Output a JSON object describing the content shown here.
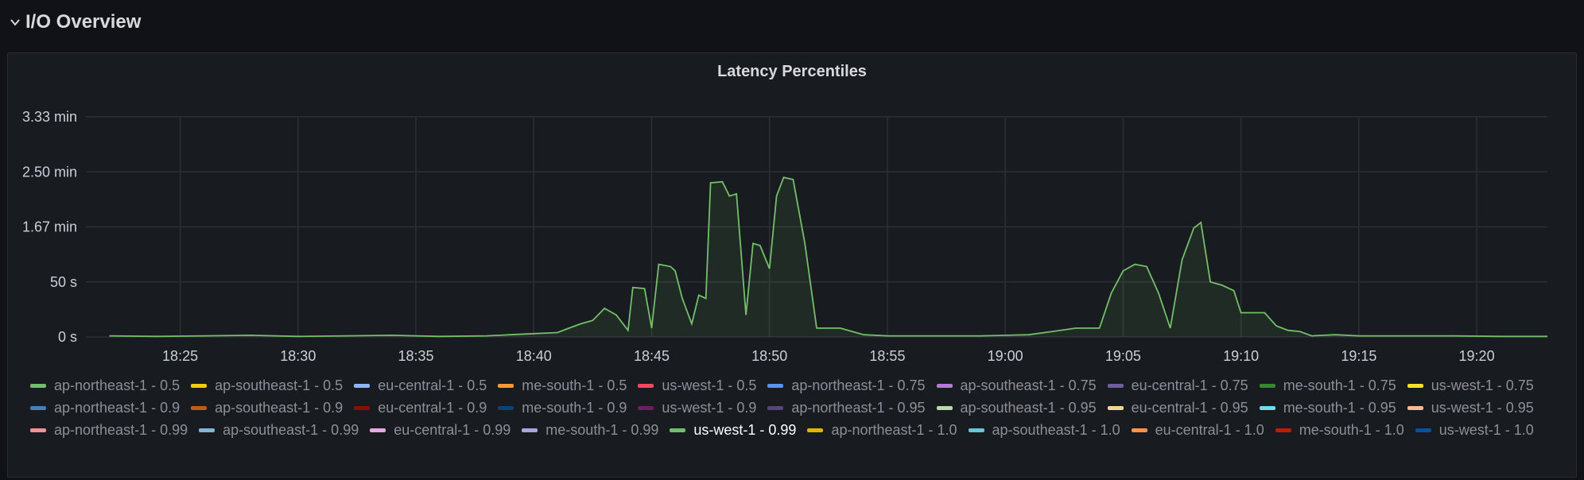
{
  "row": {
    "title": "I/O Overview"
  },
  "panel": {
    "title": "Latency Percentiles"
  },
  "chart_data": {
    "type": "area",
    "title": "Latency Percentiles",
    "y_ticks": [
      {
        "label": "0 s",
        "value": 0
      },
      {
        "label": "50 s",
        "value": 50
      },
      {
        "label": "1.67 min",
        "value": 100
      },
      {
        "label": "2.50 min",
        "value": 150
      },
      {
        "label": "3.33 min",
        "value": 200
      }
    ],
    "ylim": [
      0,
      200
    ],
    "y_unit": "seconds",
    "x_ticks": [
      "18:25",
      "18:30",
      "18:35",
      "18:40",
      "18:45",
      "18:50",
      "18:55",
      "19:00",
      "19:05",
      "19:10",
      "19:15",
      "19:20"
    ],
    "x_range_minutes": [
      "18:21",
      "19:23"
    ],
    "grid": true,
    "legend_placement": "bottom",
    "series": [
      {
        "name": "us-west-1 - 0.99",
        "color": "#73bf69",
        "points": [
          [
            "18:22",
            1
          ],
          [
            "18:24",
            0.5
          ],
          [
            "18:26",
            1
          ],
          [
            "18:28",
            1.5
          ],
          [
            "18:30",
            0.5
          ],
          [
            "18:32",
            1
          ],
          [
            "18:34",
            1.5
          ],
          [
            "18:36",
            0.5
          ],
          [
            "18:38",
            1
          ],
          [
            "18:39",
            2
          ],
          [
            "18:40",
            3
          ],
          [
            "18:41",
            4
          ],
          [
            "18:41.5",
            8
          ],
          [
            "18:42",
            12
          ],
          [
            "18:42.5",
            15
          ],
          [
            "18:43",
            26
          ],
          [
            "18:43.5",
            20
          ],
          [
            "18:44",
            6
          ],
          [
            "18:44.2",
            45
          ],
          [
            "18:44.7",
            44
          ],
          [
            "18:45",
            8
          ],
          [
            "18:45.3",
            66
          ],
          [
            "18:45.8",
            64
          ],
          [
            "18:46",
            60
          ],
          [
            "18:46.3",
            35
          ],
          [
            "18:46.7",
            12
          ],
          [
            "18:47",
            38
          ],
          [
            "18:47.3",
            35
          ],
          [
            "18:47.5",
            140
          ],
          [
            "18:48",
            141
          ],
          [
            "18:48.3",
            128
          ],
          [
            "18:48.6",
            130
          ],
          [
            "18:49",
            20
          ],
          [
            "18:49.3",
            85
          ],
          [
            "18:49.6",
            83
          ],
          [
            "18:50",
            62
          ],
          [
            "18:50.3",
            128
          ],
          [
            "18:50.6",
            145
          ],
          [
            "18:51",
            143
          ],
          [
            "18:51.5",
            85
          ],
          [
            "18:52",
            8
          ],
          [
            "18:53",
            8
          ],
          [
            "18:54",
            2
          ],
          [
            "18:55",
            1
          ],
          [
            "18:57",
            1
          ],
          [
            "18:59",
            1
          ],
          [
            "19:01",
            2
          ],
          [
            "19:02",
            5
          ],
          [
            "19:03",
            8
          ],
          [
            "19:04",
            8
          ],
          [
            "19:04.5",
            40
          ],
          [
            "19:05",
            60
          ],
          [
            "19:05.5",
            66
          ],
          [
            "19:06",
            64
          ],
          [
            "19:06.5",
            40
          ],
          [
            "19:07",
            8
          ],
          [
            "19:07.5",
            70
          ],
          [
            "19:08",
            99
          ],
          [
            "19:08.3",
            104
          ],
          [
            "19:08.7",
            50
          ],
          [
            "19:09.2",
            47
          ],
          [
            "19:09.7",
            42
          ],
          [
            "19:10",
            22
          ],
          [
            "19:11",
            22
          ],
          [
            "19:11.5",
            10
          ],
          [
            "19:12",
            6
          ],
          [
            "19:12.5",
            5
          ],
          [
            "19:13",
            1
          ],
          [
            "19:14",
            2
          ],
          [
            "19:15",
            1
          ],
          [
            "19:17",
            1
          ],
          [
            "19:19",
            1
          ],
          [
            "19:21",
            0.5
          ],
          [
            "19:23",
            0.5
          ]
        ]
      }
    ]
  },
  "legend": [
    {
      "label": "ap-northeast-1 - 0.5",
      "color": "#73bf69",
      "active": false
    },
    {
      "label": "ap-southeast-1 - 0.5",
      "color": "#f2cc0c",
      "active": false
    },
    {
      "label": "eu-central-1 - 0.5",
      "color": "#8ab8ff",
      "active": false
    },
    {
      "label": "me-south-1 - 0.5",
      "color": "#ff9830",
      "active": false
    },
    {
      "label": "us-west-1 - 0.5",
      "color": "#f2495c",
      "active": false
    },
    {
      "label": "ap-northeast-1 - 0.75",
      "color": "#5794f2",
      "active": false
    },
    {
      "label": "ap-southeast-1 - 0.75",
      "color": "#b877d9",
      "active": false
    },
    {
      "label": "eu-central-1 - 0.75",
      "color": "#705da0",
      "active": false
    },
    {
      "label": "me-south-1 - 0.75",
      "color": "#37872d",
      "active": false
    },
    {
      "label": "us-west-1 - 0.75",
      "color": "#fade2a",
      "active": false
    },
    {
      "label": "ap-northeast-1 - 0.9",
      "color": "#447ebc",
      "active": false
    },
    {
      "label": "ap-southeast-1 - 0.9",
      "color": "#c15c17",
      "active": false
    },
    {
      "label": "eu-central-1 - 0.9",
      "color": "#890f02",
      "active": false
    },
    {
      "label": "me-south-1 - 0.9",
      "color": "#0a437c",
      "active": false
    },
    {
      "label": "us-west-1 - 0.9",
      "color": "#6d1f62",
      "active": false
    },
    {
      "label": "ap-northeast-1 - 0.95",
      "color": "#584477",
      "active": false
    },
    {
      "label": "ap-southeast-1 - 0.95",
      "color": "#b7dbab",
      "active": false
    },
    {
      "label": "eu-central-1 - 0.95",
      "color": "#f4d598",
      "active": false
    },
    {
      "label": "me-south-1 - 0.95",
      "color": "#70dbed",
      "active": false
    },
    {
      "label": "us-west-1 - 0.95",
      "color": "#f9ba8f",
      "active": false
    },
    {
      "label": "ap-northeast-1 - 0.99",
      "color": "#f29191",
      "active": false
    },
    {
      "label": "ap-southeast-1 - 0.99",
      "color": "#82b5d8",
      "active": false
    },
    {
      "label": "eu-central-1 - 0.99",
      "color": "#e5a8e2",
      "active": false
    },
    {
      "label": "me-south-1 - 0.99",
      "color": "#aea2e0",
      "active": false
    },
    {
      "label": "us-west-1 - 0.99",
      "color": "#73bf69",
      "active": true
    },
    {
      "label": "ap-northeast-1 - 1.0",
      "color": "#e0b400",
      "active": false
    },
    {
      "label": "ap-southeast-1 - 1.0",
      "color": "#65c5db",
      "active": false
    },
    {
      "label": "eu-central-1 - 1.0",
      "color": "#f9934e",
      "active": false
    },
    {
      "label": "me-south-1 - 1.0",
      "color": "#bf1b00",
      "active": false
    },
    {
      "label": "us-west-1 - 1.0",
      "color": "#0a50a1",
      "active": false
    }
  ]
}
